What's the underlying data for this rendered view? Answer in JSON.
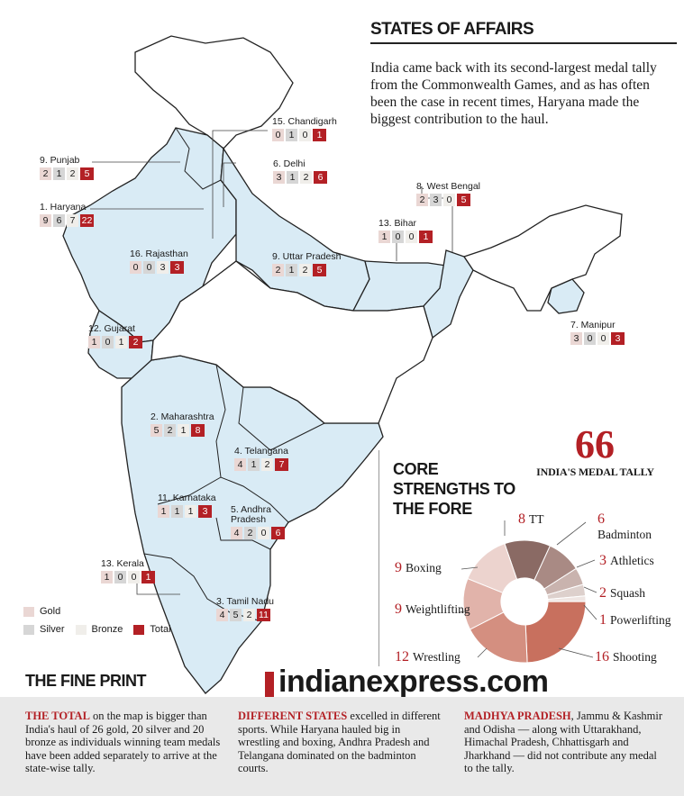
{
  "headline": "STATES OF AFFAIRS",
  "intro": "India came back with its second-largest medal tally from the Commonwealth Games, and as has often been the case in recent times, Haryana made the biggest contribution to the haul.",
  "core_title": "CORE STRENGTHS TO THE FORE",
  "total_value": "66",
  "total_label": "INDIA'S MEDAL TALLY",
  "legend": {
    "gold": "Gold",
    "silver": "Silver",
    "bronze": "Bronze",
    "total": "Total"
  },
  "colors": {
    "accent": "#b32025",
    "gold_box": "#ead7d4",
    "silver_box": "#d6d6d6",
    "bronze_box": "#f0eeea",
    "map_fill": "#d9ebf5",
    "map_stroke": "#222222"
  },
  "brand": "indianexpress.com",
  "fineprint_title": "THE FINE PRINT",
  "notes": [
    {
      "lead": "THE TOTAL",
      "text": " on the map is bigger than India's haul of 26 gold, 20 silver and 20 bronze as individuals winning team medals have been added separately to arrive at the state-wise tally."
    },
    {
      "lead": "DIFFERENT STATES",
      "text": " excelled in different sports. While Haryana hauled big in wrestling and boxing, Andhra Pradesh and Telangana dominated on the badminton courts."
    },
    {
      "lead": "MADHYA PRADESH",
      "text": ", Jammu & Kashmir and Odisha — along with Uttarakhand, Himachal Pradesh, Chhattisgarh and Jharkhand — did not contribute any medal to the tally."
    }
  ],
  "states": [
    {
      "name": "15. Chandigarh",
      "gold": "0",
      "silver": "1",
      "bronze": "0",
      "total": "1"
    },
    {
      "name": "9. Punjab",
      "gold": "2",
      "silver": "1",
      "bronze": "2",
      "total": "5"
    },
    {
      "name": "6. Delhi",
      "gold": "3",
      "silver": "1",
      "bronze": "2",
      "total": "6"
    },
    {
      "name": "8. West Bengal",
      "gold": "2",
      "silver": "3",
      "bronze": "0",
      "total": "5"
    },
    {
      "name": "1. Haryana",
      "gold": "9",
      "silver": "6",
      "bronze": "7",
      "total": "22"
    },
    {
      "name": "13. Bihar",
      "gold": "1",
      "silver": "0",
      "bronze": "0",
      "total": "1"
    },
    {
      "name": "16. Rajasthan",
      "gold": "0",
      "silver": "0",
      "bronze": "3",
      "total": "3"
    },
    {
      "name": "9. Uttar Pradesh",
      "gold": "2",
      "silver": "1",
      "bronze": "2",
      "total": "5"
    },
    {
      "name": "12. Gujarat",
      "gold": "1",
      "silver": "0",
      "bronze": "1",
      "total": "2"
    },
    {
      "name": "7. Manipur",
      "gold": "3",
      "silver": "0",
      "bronze": "0",
      "total": "3"
    },
    {
      "name": "2. Maharashtra",
      "gold": "5",
      "silver": "2",
      "bronze": "1",
      "total": "8"
    },
    {
      "name": "4. Telangana",
      "gold": "4",
      "silver": "1",
      "bronze": "2",
      "total": "7"
    },
    {
      "name": "11. Karnataka",
      "gold": "1",
      "silver": "1",
      "bronze": "1",
      "total": "3"
    },
    {
      "name": "5. Andhra Pradesh",
      "gold": "4",
      "silver": "2",
      "bronze": "0",
      "total": "6"
    },
    {
      "name": "13. Kerala",
      "gold": "1",
      "silver": "0",
      "bronze": "0",
      "total": "1"
    },
    {
      "name": "3. Tamil Nadu",
      "gold": "4",
      "silver": "5",
      "bronze": "2",
      "total": "11"
    }
  ],
  "chart_data": {
    "type": "pie",
    "title": "CORE STRENGTHS TO THE FORE",
    "categories": [
      "TT",
      "Badminton",
      "Athletics",
      "Squash",
      "Powerlifting",
      "Shooting",
      "Wrestling",
      "Weightlifting",
      "Boxing"
    ],
    "values": [
      8,
      6,
      3,
      2,
      1,
      16,
      12,
      9,
      9
    ],
    "colors": [
      "#8a6a64",
      "#a98a84",
      "#c9b3ae",
      "#ddd0cc",
      "#efe6e3",
      "#c8705e",
      "#d48f80",
      "#e1b3aa",
      "#ecd3ce"
    ],
    "labels": [
      "8 TT",
      "6 Badminton",
      "3 Athletics",
      "2 Squash",
      "1 Powerlifting",
      "16 Shooting",
      "12 Wrestling",
      "9 Weightlifting",
      "9 Boxing"
    ],
    "donut": true
  }
}
